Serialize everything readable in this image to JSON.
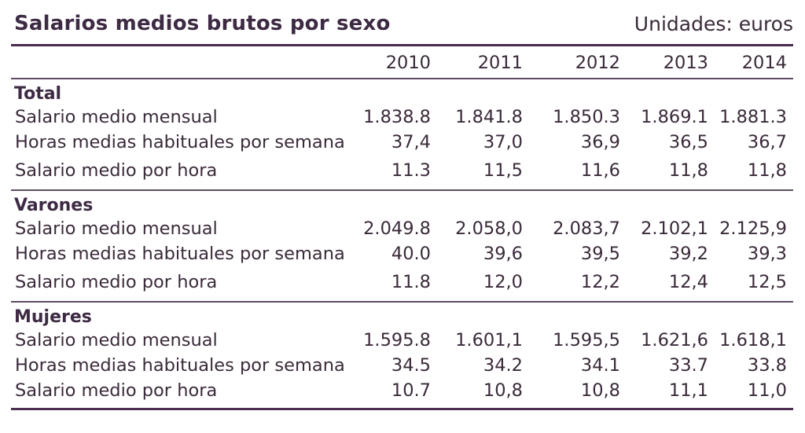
{
  "title": "Salarios medios brutos por sexo",
  "units": "Unidades: euros",
  "years": [
    "2010",
    "2011",
    "2012",
    "2013",
    "2014"
  ],
  "sections": [
    {
      "name": "Total",
      "rows": [
        {
          "label": "Salario medio mensual",
          "values": [
            "1.838.8",
            "1.841.8",
            "1.850.3",
            "1.869.1",
            "1.881.3"
          ]
        },
        {
          "label": "Horas medias habituales por semana",
          "values": [
            "37,4",
            "37,0",
            "36,9",
            "36,5",
            "36,7"
          ]
        },
        {
          "label": "Salario medio por hora",
          "values": [
            "11.3",
            "11,5",
            "11,6",
            "11,8",
            "11,8"
          ]
        }
      ]
    },
    {
      "name": "Varones",
      "rows": [
        {
          "label": "Salario medio mensual",
          "values": [
            "2.049.8",
            "2.058,0",
            "2.083,7",
            "2.102,1",
            "2.125,9"
          ]
        },
        {
          "label": "Horas medias habituales por semana",
          "values": [
            "40.0",
            "39,6",
            "39,5",
            "39,2",
            "39,3"
          ]
        },
        {
          "label": "Salario medio por hora",
          "values": [
            "11.8",
            "12,0",
            "12,2",
            "12,4",
            "12,5"
          ]
        }
      ]
    },
    {
      "name": "Mujeres",
      "rows": [
        {
          "label": "Salario medio mensual",
          "values": [
            "1.595.8",
            "1.601,1",
            "1.595,5",
            "1.621,6",
            "1.618,1"
          ]
        },
        {
          "label": "Horas medias habituales por semana",
          "values": [
            "34.5",
            "34.2",
            "34.1",
            "33.7",
            "33.8"
          ]
        },
        {
          "label": "Salario medio por hora",
          "values": [
            "10.7",
            "10,8",
            "10,8",
            "11,1",
            "11,0"
          ]
        }
      ]
    }
  ]
}
